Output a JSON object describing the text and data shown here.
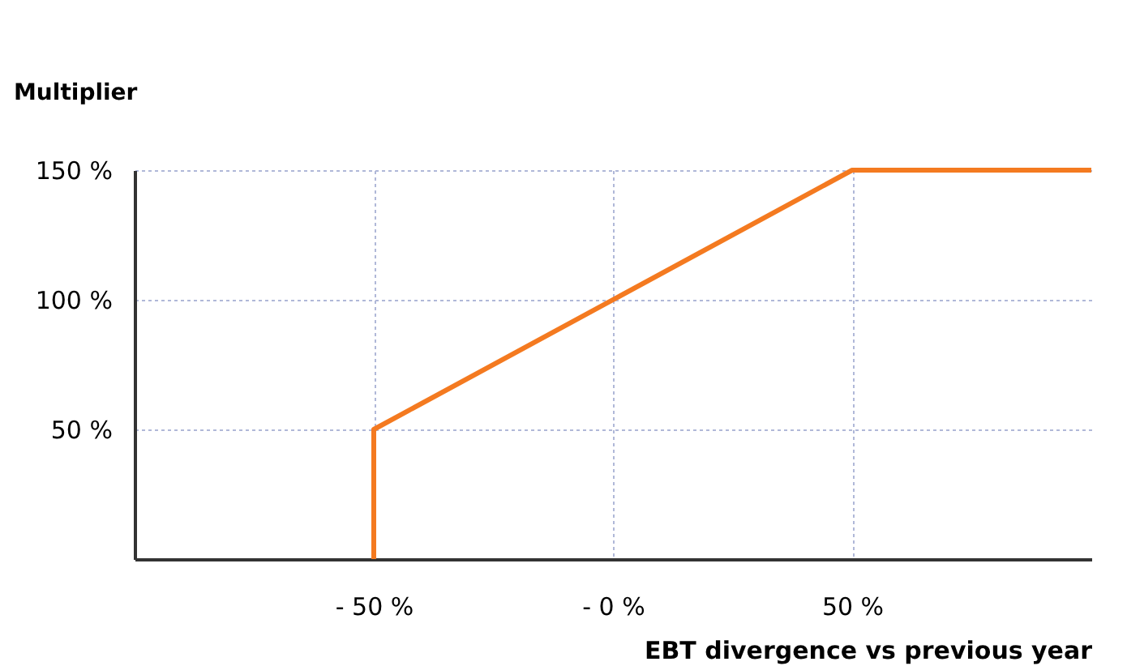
{
  "chart_data": {
    "type": "line",
    "xlabel": "EBT divergence vs previous year",
    "ylabel": "Multiplier",
    "x": [
      -50,
      -50,
      50,
      100
    ],
    "series": [
      {
        "color": "#f47a20",
        "values": [
          0,
          50,
          150,
          150
        ]
      }
    ],
    "xlim": [
      -100,
      100
    ],
    "ylim": [
      0,
      150
    ],
    "xticks": [
      {
        "value": -50,
        "label": "- 50 %"
      },
      {
        "value": 0,
        "label": "- 0 %"
      },
      {
        "value": 50,
        "label": "50 %"
      }
    ],
    "yticks": [
      {
        "value": 50,
        "label": "50 %"
      },
      {
        "value": 100,
        "label": "100 %"
      },
      {
        "value": 150,
        "label": "150 %"
      }
    ],
    "grid": true,
    "marker": "none",
    "line_style": "solid"
  }
}
